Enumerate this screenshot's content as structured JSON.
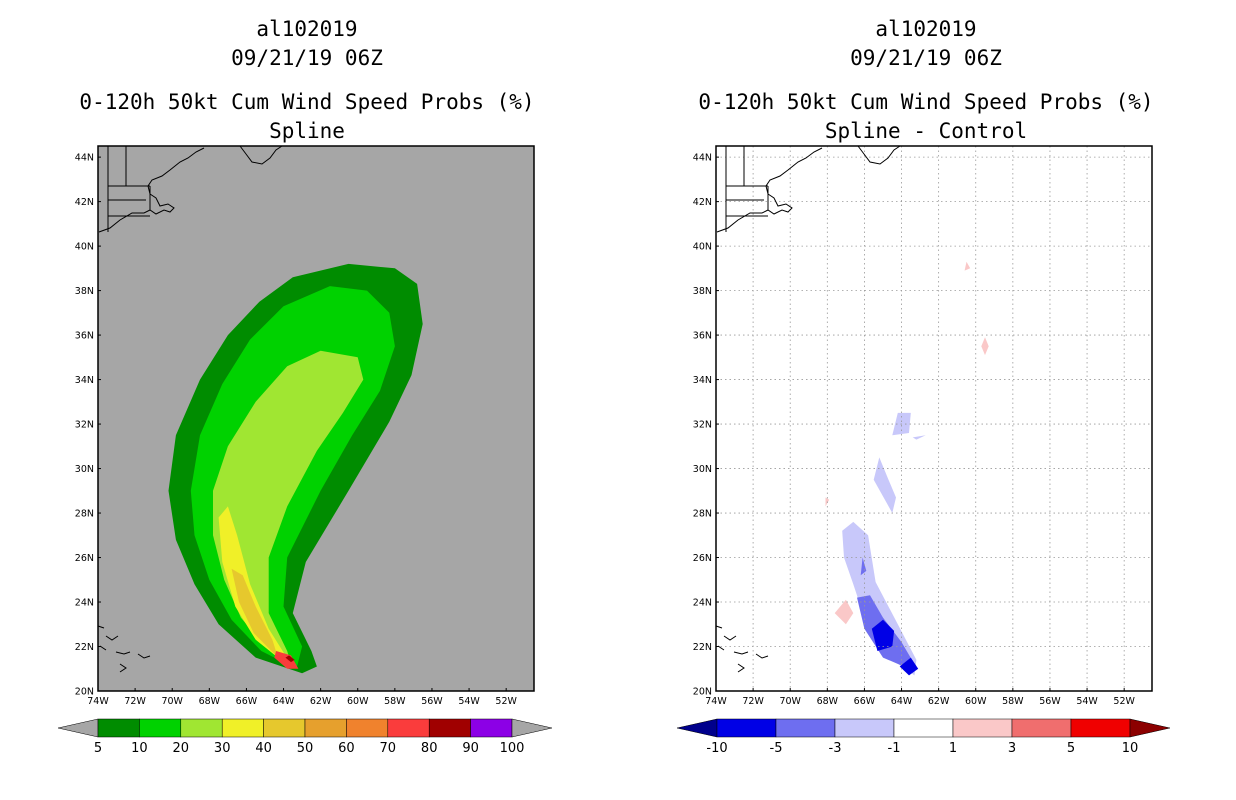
{
  "left_panel": {
    "storm_id": "al102019",
    "datetime": "09/21/19 06Z",
    "product": "0-120h 50kt Cum Wind Speed Probs (%)",
    "subtitle": "Spline",
    "colorbar": {
      "levels": [
        "5",
        "10",
        "20",
        "30",
        "40",
        "50",
        "60",
        "70",
        "80",
        "90",
        "100"
      ],
      "colors": [
        "#008c00",
        "#00d200",
        "#a0e632",
        "#f0f028",
        "#e6c82d",
        "#e6a02d",
        "#f0822d",
        "#fa3c3c",
        "#a00000",
        "#8c00e6"
      ],
      "under_color": "#a6a6a6",
      "over_color": "#a6a6a6"
    }
  },
  "right_panel": {
    "storm_id": "al102019",
    "datetime": "09/21/19 06Z",
    "product": "0-120h 50kt Cum Wind Speed Probs (%)",
    "subtitle": "Spline - Control",
    "colorbar": {
      "levels": [
        "-10",
        "-5",
        "-3",
        "-1",
        "1",
        "3",
        "5",
        "10"
      ],
      "colors": [
        "#0000e6",
        "#6e6ef0",
        "#c8c8fa",
        "#ffffff",
        "#fac8c8",
        "#f06e6e",
        "#f00000"
      ],
      "under_color": "#00008c",
      "over_color": "#8c0000"
    }
  },
  "axes": {
    "lat_labels": [
      "44N",
      "42N",
      "40N",
      "38N",
      "36N",
      "34N",
      "32N",
      "30N",
      "28N",
      "26N",
      "24N",
      "22N",
      "20N"
    ],
    "lon_labels": [
      "74W",
      "72W",
      "70W",
      "68W",
      "66W",
      "64W",
      "62W",
      "60W",
      "58W",
      "56W",
      "54W",
      "52W"
    ]
  },
  "map_data": {
    "region": {
      "lon_min": -74,
      "lon_max": -50.5,
      "lat_min": 20,
      "lat_max": 44.5
    },
    "land_color": "#a6a6a6",
    "prob_contours": [
      {
        "level": 5,
        "polygon": [
          [
            -63.0,
            20.8
          ],
          [
            -65.5,
            21.5
          ],
          [
            -67.5,
            23.0
          ],
          [
            -68.8,
            24.8
          ],
          [
            -69.8,
            26.8
          ],
          [
            -70.2,
            29.0
          ],
          [
            -69.8,
            31.5
          ],
          [
            -68.5,
            34.0
          ],
          [
            -67.0,
            36.0
          ],
          [
            -65.3,
            37.5
          ],
          [
            -63.5,
            38.6
          ],
          [
            -60.5,
            39.2
          ],
          [
            -58.0,
            39.0
          ],
          [
            -56.8,
            38.3
          ],
          [
            -56.5,
            36.5
          ],
          [
            -57.1,
            34.2
          ],
          [
            -58.3,
            32.1
          ],
          [
            -60.5,
            29.0
          ],
          [
            -62.8,
            25.8
          ],
          [
            -63.5,
            23.5
          ],
          [
            -62.5,
            21.8
          ],
          [
            -62.2,
            21.1
          ]
        ]
      },
      {
        "level": 10,
        "polygon": [
          [
            -63.3,
            21.0
          ],
          [
            -65.2,
            21.8
          ],
          [
            -66.8,
            23.2
          ],
          [
            -68.0,
            25.0
          ],
          [
            -68.8,
            27.0
          ],
          [
            -69.0,
            29.0
          ],
          [
            -68.5,
            31.5
          ],
          [
            -67.3,
            33.8
          ],
          [
            -65.8,
            35.8
          ],
          [
            -64.0,
            37.3
          ],
          [
            -61.5,
            38.2
          ],
          [
            -59.5,
            38.0
          ],
          [
            -58.3,
            37.0
          ],
          [
            -58.0,
            35.5
          ],
          [
            -58.8,
            33.5
          ],
          [
            -60.3,
            31.5
          ],
          [
            -62.0,
            29.0
          ],
          [
            -63.8,
            26.0
          ],
          [
            -64.0,
            23.8
          ],
          [
            -63.0,
            22.0
          ]
        ]
      },
      {
        "level": 20,
        "polygon": [
          [
            -63.6,
            21.2
          ],
          [
            -65.0,
            22.0
          ],
          [
            -66.3,
            23.3
          ],
          [
            -67.2,
            25.0
          ],
          [
            -67.8,
            27.0
          ],
          [
            -67.8,
            29.0
          ],
          [
            -67.0,
            31.0
          ],
          [
            -65.5,
            33.0
          ],
          [
            -63.8,
            34.6
          ],
          [
            -62.0,
            35.3
          ],
          [
            -60.0,
            35.0
          ],
          [
            -59.7,
            34.0
          ],
          [
            -60.8,
            32.5
          ],
          [
            -62.2,
            30.8
          ],
          [
            -63.8,
            28.3
          ],
          [
            -64.8,
            26.0
          ],
          [
            -64.8,
            23.5
          ],
          [
            -63.8,
            21.8
          ]
        ]
      },
      {
        "level": 30,
        "polygon": [
          [
            -64.0,
            21.3
          ],
          [
            -65.5,
            22.3
          ],
          [
            -66.6,
            23.8
          ],
          [
            -67.3,
            25.8
          ],
          [
            -67.5,
            27.8
          ],
          [
            -67.0,
            28.3
          ],
          [
            -66.5,
            27.0
          ],
          [
            -65.8,
            24.8
          ],
          [
            -64.8,
            22.8
          ],
          [
            -63.9,
            21.6
          ]
        ]
      },
      {
        "level": 40,
        "polygon": [
          [
            -64.3,
            21.5
          ],
          [
            -65.6,
            22.6
          ],
          [
            -66.4,
            24.0
          ],
          [
            -66.8,
            25.5
          ],
          [
            -66.2,
            25.2
          ],
          [
            -65.5,
            23.8
          ],
          [
            -64.6,
            22.3
          ]
        ]
      },
      {
        "level": 70,
        "polygon": [
          [
            -63.8,
            21.0
          ],
          [
            -64.5,
            21.5
          ],
          [
            -64.4,
            21.8
          ],
          [
            -63.6,
            21.6
          ],
          [
            -63.2,
            21.0
          ]
        ]
      },
      {
        "level": 80,
        "polygon": [
          [
            -63.6,
            21.3
          ],
          [
            -63.9,
            21.5
          ],
          [
            -63.7,
            21.6
          ],
          [
            -63.4,
            21.4
          ]
        ]
      }
    ],
    "diff_contours": [
      {
        "level": -3,
        "polygon": [
          [
            -63.3,
            20.7
          ],
          [
            -64.5,
            21.4
          ],
          [
            -65.8,
            22.8
          ],
          [
            -66.6,
            24.8
          ],
          [
            -67.1,
            26.0
          ],
          [
            -67.2,
            27.2
          ],
          [
            -66.6,
            27.6
          ],
          [
            -65.8,
            27.0
          ],
          [
            -65.4,
            24.9
          ],
          [
            -64.2,
            23.0
          ],
          [
            -63.2,
            21.4
          ]
        ]
      },
      {
        "level": -3,
        "polygon": [
          [
            -64.5,
            28.0
          ],
          [
            -65.5,
            29.5
          ],
          [
            -65.2,
            30.5
          ],
          [
            -64.7,
            29.5
          ],
          [
            -64.3,
            28.7
          ]
        ]
      },
      {
        "level": -3,
        "polygon": [
          [
            -64.5,
            31.5
          ],
          [
            -63.6,
            31.6
          ],
          [
            -63.5,
            32.5
          ],
          [
            -64.2,
            32.5
          ]
        ]
      },
      {
        "level": -3,
        "polygon": [
          [
            -63.4,
            31.4
          ],
          [
            -62.7,
            31.5
          ],
          [
            -63.2,
            31.3
          ]
        ]
      },
      {
        "level": -5,
        "polygon": [
          [
            -63.6,
            21.0
          ],
          [
            -65.0,
            21.5
          ],
          [
            -66.0,
            22.8
          ],
          [
            -66.4,
            24.2
          ],
          [
            -65.7,
            24.3
          ],
          [
            -65.0,
            23.3
          ],
          [
            -64.0,
            22.2
          ],
          [
            -63.3,
            21.2
          ]
        ]
      },
      {
        "level": -5,
        "polygon": [
          [
            -65.9,
            25.4
          ],
          [
            -66.2,
            25.2
          ],
          [
            -66.1,
            26.0
          ]
        ]
      },
      {
        "level": -10,
        "polygon": [
          [
            -64.5,
            22.0
          ],
          [
            -65.3,
            21.8
          ],
          [
            -65.6,
            22.8
          ],
          [
            -65.0,
            23.2
          ],
          [
            -64.4,
            22.7
          ]
        ]
      },
      {
        "level": -10,
        "polygon": [
          [
            -63.6,
            20.7
          ],
          [
            -64.1,
            21.1
          ],
          [
            -63.5,
            21.5
          ],
          [
            -63.1,
            21.0
          ]
        ]
      },
      {
        "level": 1,
        "polygon": [
          [
            -67.0,
            23.0
          ],
          [
            -67.6,
            23.5
          ],
          [
            -67.0,
            24.1
          ],
          [
            -66.6,
            23.5
          ]
        ]
      },
      {
        "level": 1,
        "polygon": [
          [
            -60.6,
            38.9
          ],
          [
            -60.3,
            39.0
          ],
          [
            -60.5,
            39.3
          ]
        ]
      },
      {
        "level": 1,
        "polygon": [
          [
            -59.5,
            35.1
          ],
          [
            -59.3,
            35.5
          ],
          [
            -59.5,
            35.9
          ],
          [
            -59.7,
            35.5
          ]
        ]
      },
      {
        "level": 1,
        "polygon": [
          [
            -68.1,
            28.3
          ],
          [
            -67.9,
            28.6
          ],
          [
            -68.1,
            28.7
          ]
        ]
      }
    ]
  }
}
